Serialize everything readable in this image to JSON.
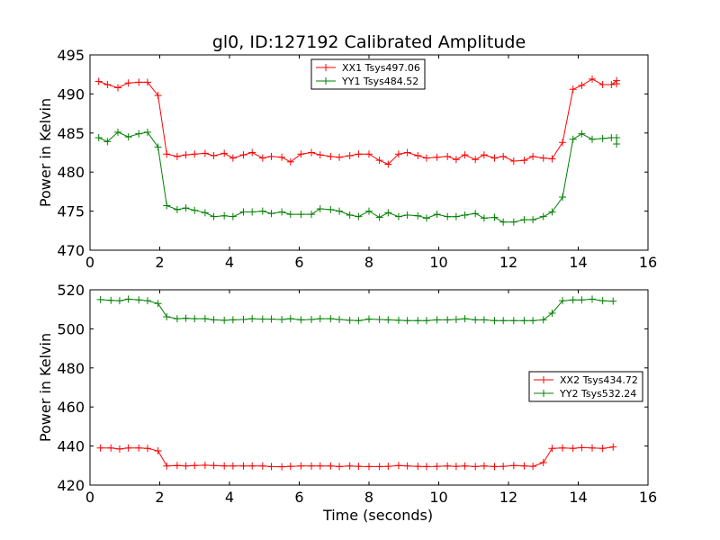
{
  "figure": {
    "title": "gl0, ID:127192 Calibrated Amplitude"
  },
  "chart_data": [
    {
      "type": "line",
      "title": "gl0, ID:127192 Calibrated Amplitude",
      "xlabel": "",
      "ylabel": "Power in Kelvin",
      "xlim": [
        0,
        16
      ],
      "ylim": [
        470,
        495
      ],
      "xticks": [
        0,
        2,
        4,
        6,
        8,
        10,
        12,
        14,
        16
      ],
      "yticks": [
        470,
        475,
        480,
        485,
        490,
        495
      ],
      "grid": false,
      "legend_position": "top-center",
      "x": [
        0.25,
        0.5,
        0.8,
        1.1,
        1.4,
        1.65,
        1.95,
        2.2,
        2.5,
        2.75,
        3.0,
        3.3,
        3.55,
        3.85,
        4.1,
        4.4,
        4.65,
        4.95,
        5.2,
        5.5,
        5.75,
        6.05,
        6.35,
        6.6,
        6.9,
        7.15,
        7.45,
        7.7,
        8.0,
        8.3,
        8.55,
        8.85,
        9.1,
        9.4,
        9.65,
        9.95,
        10.25,
        10.5,
        10.75,
        11.05,
        11.3,
        11.6,
        11.85,
        12.15,
        12.45,
        12.7,
        13.0,
        13.25,
        13.55,
        13.85,
        14.1,
        14.4,
        14.7,
        14.95
      ],
      "series": [
        {
          "name": "XX1 Tsys497.06",
          "color": "#ff0000",
          "values": [
            491.6,
            491.2,
            490.8,
            491.4,
            491.5,
            491.5,
            489.8,
            482.3,
            482.0,
            482.2,
            482.3,
            482.4,
            482.1,
            482.4,
            481.8,
            482.2,
            482.5,
            481.8,
            482.0,
            481.9,
            481.3,
            482.3,
            482.5,
            482.2,
            482.0,
            481.9,
            482.1,
            482.3,
            482.3,
            481.5,
            481.0,
            482.3,
            482.5,
            482.1,
            481.8,
            481.9,
            482.0,
            481.6,
            482.2,
            481.6,
            482.2,
            481.8,
            482.0,
            481.4,
            481.5,
            482.0,
            481.8,
            481.7,
            483.8,
            490.6,
            491.1,
            491.9,
            491.2,
            491.2,
            491.7,
            491.3
          ],
          "x": [
            0.25,
            0.5,
            0.8,
            1.1,
            1.4,
            1.65,
            1.95,
            2.2,
            2.5,
            2.75,
            3.0,
            3.3,
            3.55,
            3.85,
            4.1,
            4.4,
            4.65,
            4.95,
            5.2,
            5.5,
            5.75,
            6.05,
            6.35,
            6.6,
            6.9,
            7.15,
            7.45,
            7.7,
            8.0,
            8.3,
            8.55,
            8.85,
            9.1,
            9.4,
            9.65,
            9.95,
            10.25,
            10.5,
            10.75,
            11.05,
            11.3,
            11.6,
            11.85,
            12.15,
            12.45,
            12.7,
            13.0,
            13.25,
            13.55,
            13.85,
            14.1,
            14.4,
            14.7,
            14.95,
            15.1,
            15.1
          ]
        },
        {
          "name": "YY1 Tsys484.52",
          "color": "#008000",
          "values": [
            484.4,
            483.9,
            485.1,
            484.5,
            484.9,
            485.1,
            483.2,
            475.7,
            475.2,
            475.4,
            475.1,
            474.8,
            474.3,
            474.4,
            474.3,
            474.9,
            474.9,
            475.0,
            474.7,
            474.9,
            474.6,
            474.6,
            474.6,
            475.3,
            475.2,
            475.0,
            474.5,
            474.3,
            475.0,
            474.2,
            474.8,
            474.3,
            474.5,
            474.4,
            474.1,
            474.6,
            474.3,
            474.3,
            474.5,
            474.7,
            474.1,
            474.2,
            473.6,
            473.6,
            473.9,
            473.9,
            474.3,
            474.9,
            476.8,
            484.2,
            484.9,
            484.2,
            484.3,
            484.4,
            484.4,
            483.6
          ],
          "x": [
            0.25,
            0.5,
            0.8,
            1.1,
            1.4,
            1.65,
            1.95,
            2.2,
            2.5,
            2.75,
            3.0,
            3.3,
            3.55,
            3.85,
            4.1,
            4.4,
            4.65,
            4.95,
            5.2,
            5.5,
            5.75,
            6.05,
            6.35,
            6.6,
            6.9,
            7.15,
            7.45,
            7.7,
            8.0,
            8.3,
            8.55,
            8.85,
            9.1,
            9.4,
            9.65,
            9.95,
            10.25,
            10.5,
            10.75,
            11.05,
            11.3,
            11.6,
            11.85,
            12.15,
            12.45,
            12.7,
            13.0,
            13.25,
            13.55,
            13.85,
            14.1,
            14.4,
            14.7,
            14.95,
            15.1,
            15.1
          ]
        }
      ]
    },
    {
      "type": "line",
      "title": "",
      "xlabel": "Time (seconds)",
      "ylabel": "Power in Kelvin",
      "xlim": [
        0,
        16
      ],
      "ylim": [
        420,
        520
      ],
      "xticks": [
        0,
        2,
        4,
        6,
        8,
        10,
        12,
        14,
        16
      ],
      "yticks": [
        420,
        440,
        460,
        480,
        500,
        520
      ],
      "grid": false,
      "legend_position": "center-right",
      "series": [
        {
          "name": "XX2 Tsys434.72",
          "color": "#ff0000",
          "x": [
            0.3,
            0.6,
            0.85,
            1.1,
            1.4,
            1.65,
            1.95,
            2.2,
            2.5,
            2.75,
            3.0,
            3.3,
            3.55,
            3.85,
            4.1,
            4.4,
            4.65,
            4.95,
            5.2,
            5.5,
            5.75,
            6.05,
            6.35,
            6.6,
            6.9,
            7.15,
            7.45,
            7.7,
            8.0,
            8.3,
            8.55,
            8.85,
            9.1,
            9.4,
            9.65,
            9.95,
            10.25,
            10.5,
            10.75,
            11.05,
            11.3,
            11.6,
            11.85,
            12.15,
            12.45,
            12.7,
            13.0,
            13.25,
            13.55,
            13.85,
            14.1,
            14.4,
            14.7,
            15.0
          ],
          "values": [
            439,
            439,
            438.5,
            439,
            439,
            438.8,
            437.5,
            429.8,
            430,
            429.8,
            430,
            430.2,
            430,
            429.8,
            429.8,
            429.8,
            429.8,
            429.8,
            429.5,
            429.4,
            429.6,
            429.8,
            429.8,
            429.8,
            429.8,
            429.5,
            429.8,
            429.6,
            429.5,
            429.5,
            429.6,
            430,
            429.8,
            429.6,
            429.5,
            429.6,
            429.8,
            429.6,
            429.8,
            429.5,
            429.8,
            429.5,
            429.6,
            430,
            429.8,
            429.6,
            431.5,
            438.8,
            439,
            438.8,
            439.2,
            439,
            438.8,
            439.5
          ]
        },
        {
          "name": "YY2 Tsys532.24",
          "color": "#008000",
          "x": [
            0.3,
            0.6,
            0.85,
            1.1,
            1.4,
            1.65,
            1.95,
            2.2,
            2.5,
            2.75,
            3.0,
            3.3,
            3.55,
            3.85,
            4.1,
            4.4,
            4.65,
            4.95,
            5.2,
            5.5,
            5.75,
            6.05,
            6.35,
            6.6,
            6.9,
            7.15,
            7.45,
            7.7,
            8.0,
            8.3,
            8.55,
            8.85,
            9.1,
            9.4,
            9.65,
            9.95,
            10.25,
            10.5,
            10.75,
            11.05,
            11.3,
            11.6,
            11.85,
            12.15,
            12.45,
            12.7,
            13.0,
            13.25,
            13.55,
            13.85,
            14.1,
            14.4,
            14.7,
            15.0
          ],
          "values": [
            515,
            514.6,
            514.4,
            515.2,
            514.8,
            514.4,
            513,
            506.2,
            505.2,
            505.4,
            505.2,
            505.2,
            504.6,
            504.4,
            504.6,
            504.8,
            505.2,
            505,
            505,
            504.8,
            505.2,
            504.6,
            504.8,
            505.2,
            505.2,
            504.8,
            504.4,
            504.2,
            505,
            504.8,
            504.6,
            504.4,
            504.2,
            504.2,
            504.2,
            504.6,
            504.6,
            504.8,
            505.2,
            504.6,
            504.6,
            504.2,
            504.2,
            504.2,
            504.2,
            504.2,
            504.6,
            508,
            514.4,
            514.8,
            514.8,
            515.2,
            514.4,
            514.2
          ]
        }
      ]
    }
  ]
}
